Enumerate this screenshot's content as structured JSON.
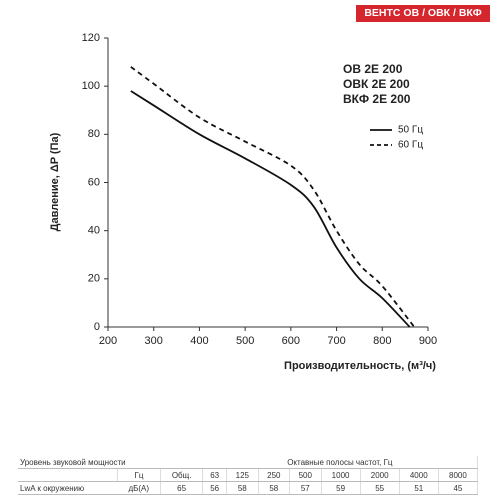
{
  "header": {
    "brand": "ВЕНТС ОВ / ОВК / ВКФ"
  },
  "chart_data": {
    "type": "line",
    "x_label": "Производительность, (м³/ч)",
    "y_label": "Давление, ΔP (Па)",
    "annotations": [
      "ОВ 2Е 200",
      "ОВК 2Е 200",
      "ВКФ 2Е 200"
    ],
    "xlim": [
      200,
      900
    ],
    "xticks": [
      200,
      300,
      400,
      500,
      600,
      700,
      800,
      900
    ],
    "ylim": [
      0,
      120
    ],
    "yticks": [
      0,
      20,
      40,
      60,
      80,
      100,
      120
    ],
    "grid": false,
    "series": [
      {
        "name": "50 Гц",
        "color": "#111111",
        "dash": false,
        "x": [
          250,
          300,
          400,
          500,
          600,
          650,
          700,
          750,
          800,
          860
        ],
        "values": [
          98,
          92,
          80,
          70,
          59,
          50,
          33,
          20,
          12,
          0
        ]
      },
      {
        "name": "60 Гц",
        "color": "#111111",
        "dash": true,
        "x": [
          250,
          300,
          400,
          500,
          600,
          650,
          700,
          750,
          800,
          870
        ],
        "values": [
          108,
          101,
          87,
          77,
          67,
          57,
          40,
          26,
          17,
          0
        ]
      }
    ]
  },
  "table": {
    "title_left": "Уровень звуковой мощности",
    "title_right": "Октавные полосы частот, Гц",
    "unit_row": [
      "Гц",
      "Общ.",
      "63",
      "125",
      "250",
      "500",
      "1000",
      "2000",
      "4000",
      "8000"
    ],
    "value_label": "LwA к окружению",
    "value_unit": "дБ(А)",
    "values": [
      65,
      56,
      58,
      58,
      57,
      59,
      55,
      51,
      45
    ]
  }
}
